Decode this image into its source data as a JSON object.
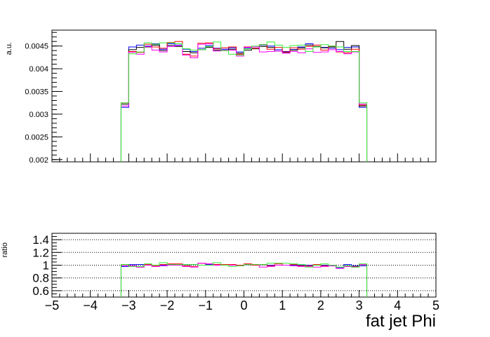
{
  "chart_data": [
    {
      "type": "line",
      "panel": "main",
      "ylabel": "a.u.",
      "xlim": [
        -5,
        5
      ],
      "ylim": [
        0.00195,
        0.00485
      ],
      "yticks": [
        "0.002",
        "0.0025",
        "0.003",
        "0.0035",
        "0.004",
        "0.0045"
      ],
      "ytick_values": [
        0.002,
        0.0025,
        0.003,
        0.0035,
        0.004,
        0.0045
      ],
      "bins": {
        "start": -3.2,
        "end": 3.2,
        "count": 32
      },
      "series": [
        {
          "color": "#0000ff",
          "values": [
            0.00315,
            0.00448,
            0.00452,
            0.0045,
            0.00455,
            0.00443,
            0.00455,
            0.00452,
            0.00443,
            0.00438,
            0.00445,
            0.00451,
            0.00445,
            0.00443,
            0.00446,
            0.00437,
            0.00445,
            0.00448,
            0.00452,
            0.0045,
            0.00442,
            0.00438,
            0.00442,
            0.00448,
            0.00455,
            0.00448,
            0.00447,
            0.00445,
            0.00442,
            0.00447,
            0.00448,
            0.00315
          ]
        },
        {
          "color": "#000000",
          "values": [
            0.00322,
            0.00442,
            0.00447,
            0.00448,
            0.00452,
            0.0044,
            0.00451,
            0.00449,
            0.00438,
            0.00435,
            0.00442,
            0.00447,
            0.00441,
            0.0044,
            0.00443,
            0.00434,
            0.00441,
            0.00444,
            0.00449,
            0.00447,
            0.00439,
            0.00436,
            0.00441,
            0.00446,
            0.00452,
            0.00449,
            0.00446,
            0.00448,
            0.0046,
            0.00443,
            0.00451,
            0.00318
          ]
        },
        {
          "color": "#ff0000",
          "values": [
            0.00325,
            0.00438,
            0.00436,
            0.00454,
            0.00448,
            0.00445,
            0.00458,
            0.0046,
            0.00432,
            0.00428,
            0.00456,
            0.00457,
            0.00444,
            0.00446,
            0.00448,
            0.00432,
            0.00448,
            0.00445,
            0.00453,
            0.00443,
            0.00447,
            0.00437,
            0.00446,
            0.00443,
            0.00449,
            0.00452,
            0.00441,
            0.0045,
            0.00437,
            0.00435,
            0.00443,
            0.0032
          ]
        },
        {
          "color": "#ff00ff",
          "values": [
            0.00318,
            0.00436,
            0.00432,
            0.00449,
            0.00441,
            0.00437,
            0.00449,
            0.00451,
            0.0043,
            0.00424,
            0.00454,
            0.00455,
            0.00439,
            0.00441,
            0.00441,
            0.00428,
            0.00447,
            0.00448,
            0.00437,
            0.00438,
            0.00439,
            0.00434,
            0.00438,
            0.00435,
            0.00444,
            0.00436,
            0.00437,
            0.00442,
            0.00438,
            0.00433,
            0.00437,
            0.00322
          ]
        },
        {
          "color": "#33ee33",
          "values": [
            0.00325,
            0.00433,
            0.00437,
            0.00457,
            0.00454,
            0.00457,
            0.00457,
            0.00455,
            0.00444,
            0.00441,
            0.00442,
            0.00449,
            0.00459,
            0.0044,
            0.00432,
            0.0043,
            0.00444,
            0.0045,
            0.00453,
            0.00459,
            0.00452,
            0.00447,
            0.00451,
            0.00452,
            0.00438,
            0.00448,
            0.00453,
            0.0045,
            0.00448,
            0.00438,
            0.00438,
            0.00325
          ]
        }
      ]
    },
    {
      "type": "line",
      "panel": "ratio",
      "xlabel": "fat jet Phi",
      "ylabel": "ratio",
      "xlim": [
        -5,
        5
      ],
      "ylim": [
        0.5,
        1.5
      ],
      "grid": true,
      "xticks": [
        "−5",
        "−4",
        "−3",
        "−2",
        "−1",
        "0",
        "1",
        "2",
        "3",
        "4",
        "5"
      ],
      "xtick_values": [
        -5,
        -4,
        -3,
        -2,
        -1,
        0,
        1,
        2,
        3,
        4,
        5
      ],
      "yticks": [
        "0.6",
        "0.8",
        "1",
        "1.2",
        "1.4"
      ],
      "ytick_values": [
        0.6,
        0.8,
        1.0,
        1.2,
        1.4
      ],
      "bins": {
        "start": -3.2,
        "end": 3.2,
        "count": 32
      },
      "series": [
        {
          "color": "#0000ff",
          "values": [
            0.98,
            1.01,
            1.01,
            1.0,
            1.0,
            1.0,
            1.01,
            1.0,
            1.01,
            1.01,
            1.0,
            1.01,
            1.01,
            1.0,
            1.0,
            1.0,
            1.01,
            1.01,
            1.01,
            1.0,
            1.0,
            1.0,
            1.0,
            1.0,
            1.0,
            1.0,
            1.0,
            0.99,
            0.96,
            1.01,
            0.99,
            0.99
          ]
        },
        {
          "color": "#ff0000",
          "values": [
            1.01,
            0.99,
            0.97,
            1.01,
            0.99,
            1.01,
            1.02,
            1.02,
            0.99,
            0.98,
            1.03,
            1.02,
            1.01,
            1.01,
            1.01,
            1.0,
            1.02,
            1.0,
            1.01,
            0.99,
            1.02,
            1.0,
            1.01,
            0.99,
            0.99,
            1.01,
            0.99,
            1.0,
            0.95,
            0.98,
            0.98,
            1.01
          ]
        },
        {
          "color": "#ff00ff",
          "values": [
            0.99,
            0.99,
            0.97,
            1.0,
            0.98,
            0.99,
            1.0,
            1.0,
            0.98,
            0.97,
            1.03,
            1.02,
            1.0,
            1.0,
            1.0,
            0.99,
            1.01,
            1.01,
            0.97,
            0.98,
            1.0,
            1.0,
            0.99,
            0.98,
            0.98,
            0.97,
            0.98,
            0.99,
            0.95,
            0.98,
            0.97,
            1.01
          ]
        },
        {
          "color": "#33ee33",
          "values": [
            1.01,
            0.98,
            0.98,
            1.02,
            1.0,
            1.04,
            1.01,
            1.01,
            1.01,
            1.01,
            1.0,
            1.0,
            1.04,
            1.0,
            0.98,
            0.99,
            1.01,
            1.01,
            1.01,
            1.03,
            1.03,
            1.03,
            1.02,
            1.01,
            0.97,
            1.0,
            1.02,
            1.0,
            0.97,
            0.99,
            0.97,
            1.02
          ]
        }
      ]
    }
  ]
}
